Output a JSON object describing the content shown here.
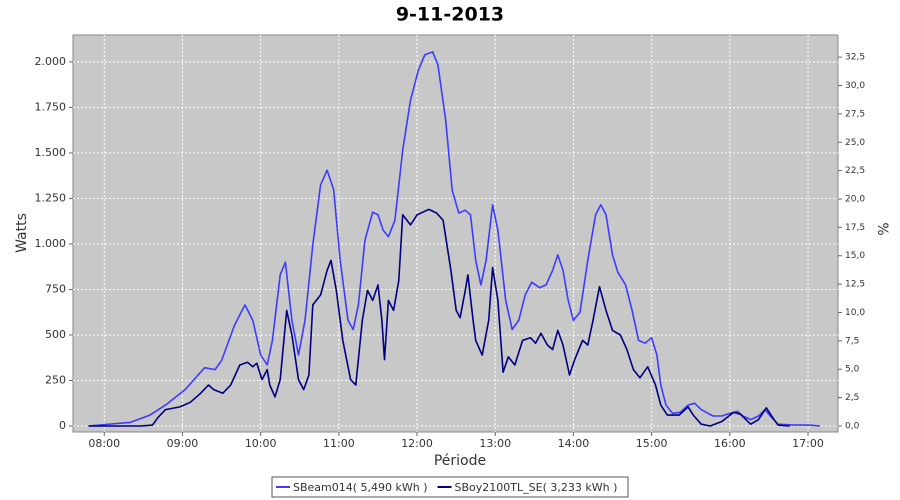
{
  "chart_data": {
    "type": "line",
    "title": "9-11-2013",
    "x_label": "Période",
    "y_label": "Watts",
    "y2_label": "%",
    "grid": true,
    "legend": "bottom",
    "xlim": [
      "07:36",
      "17:23"
    ],
    "xticks": [
      "08:00",
      "09:00",
      "10:00",
      "11:00",
      "12:00",
      "13:00",
      "14:00",
      "15:00",
      "16:00",
      "17:00"
    ],
    "ylim": [
      -33,
      2148
    ],
    "yticks": [
      0,
      250,
      500,
      750,
      {
        "value": 1000,
        "label": "1.000"
      },
      {
        "value": 1250,
        "label": "1.250"
      },
      {
        "value": 1500,
        "label": "1.500"
      },
      {
        "value": 1750,
        "label": "1.750"
      },
      {
        "value": 2000,
        "label": "2.000"
      }
    ],
    "y2lim": [
      -0.53,
      34.45
    ],
    "y2ticks": [
      {
        "value": 0,
        "label": "0,0"
      },
      {
        "value": 2.5,
        "label": "2,5"
      },
      {
        "value": 5,
        "label": "5,0"
      },
      {
        "value": 7.5,
        "label": "7,5"
      },
      {
        "value": 10,
        "label": "10,0"
      },
      {
        "value": 12.5,
        "label": "12,5"
      },
      {
        "value": 15,
        "label": "15,0"
      },
      {
        "value": 17.5,
        "label": "17,5"
      },
      {
        "value": 20,
        "label": "20,0"
      },
      {
        "value": 22.5,
        "label": "22,5"
      },
      {
        "value": 25,
        "label": "25,0"
      },
      {
        "value": 27.5,
        "label": "27,5"
      },
      {
        "value": 30,
        "label": "30,0"
      },
      {
        "value": 32.5,
        "label": "32,5"
      }
    ],
    "series": [
      {
        "name": "SBeam014( 5,490 kWh )",
        "color": "#3c3cff",
        "x": [
          "07:48",
          "08:20",
          "08:35",
          "08:47",
          "09:02",
          "09:17",
          "09:25",
          "09:30",
          "09:40",
          "09:48",
          "09:54",
          "10:00",
          "10:05",
          "10:09",
          "10:15",
          "10:19",
          "10:24",
          "10:29",
          "10:34",
          "10:40",
          "10:46",
          "10:51",
          "10:56",
          "11:01",
          "11:07",
          "11:11",
          "11:15",
          "11:20",
          "11:26",
          "11:30",
          "11:34",
          "11:38",
          "11:43",
          "11:49",
          "11:55",
          "12:01",
          "12:06",
          "12:12",
          "12:16",
          "12:22",
          "12:27",
          "12:32",
          "12:37",
          "12:41",
          "12:45",
          "12:49",
          "12:53",
          "12:58",
          "13:02",
          "13:08",
          "13:13",
          "13:18",
          "13:23",
          "13:28",
          "13:34",
          "13:39",
          "13:44",
          "13:48",
          "13:52",
          "13:56",
          "14:00",
          "14:05",
          "14:11",
          "14:17",
          "14:21",
          "14:25",
          "14:30",
          "14:34",
          "14:40",
          "14:45",
          "14:50",
          "14:55",
          "15:00",
          "15:04",
          "15:07",
          "15:11",
          "15:16",
          "15:22",
          "15:28",
          "15:33",
          "15:38",
          "15:47",
          "15:54",
          "16:00",
          "16:06",
          "16:10",
          "16:16",
          "16:22",
          "16:27",
          "16:31",
          "16:37",
          "16:50",
          "17:01",
          "17:09"
        ],
        "values": [
          0,
          20,
          60,
          115,
          200,
          320,
          310,
          360,
          555,
          665,
          580,
          390,
          335,
          470,
          830,
          900,
          580,
          390,
          580,
          995,
          1325,
          1405,
          1300,
          910,
          580,
          530,
          665,
          1020,
          1175,
          1160,
          1075,
          1040,
          1130,
          1515,
          1790,
          1955,
          2040,
          2055,
          1985,
          1680,
          1295,
          1170,
          1185,
          1160,
          910,
          775,
          910,
          1215,
          1075,
          690,
          530,
          580,
          720,
          790,
          760,
          775,
          855,
          940,
          855,
          690,
          580,
          625,
          910,
          1160,
          1215,
          1160,
          940,
          845,
          775,
          635,
          470,
          455,
          485,
          390,
          225,
          115,
          70,
          75,
          115,
          125,
          90,
          55,
          55,
          70,
          80,
          55,
          35,
          55,
          90,
          55,
          10,
          5,
          5,
          0
        ]
      },
      {
        "name": "SBoy2100TL_SE( 3,233 kWh )",
        "color": "#000080",
        "x": [
          "07:48",
          "08:28",
          "08:37",
          "08:41",
          "08:47",
          "08:58",
          "09:06",
          "09:14",
          "09:20",
          "09:24",
          "09:31",
          "09:37",
          "09:44",
          "09:50",
          "09:54",
          "09:57",
          "10:01",
          "10:05",
          "10:07",
          "10:11",
          "10:15",
          "10:20",
          "10:24",
          "10:29",
          "10:33",
          "10:37",
          "10:40",
          "10:46",
          "10:51",
          "10:54",
          "10:58",
          "11:03",
          "11:09",
          "11:13",
          "11:18",
          "11:22",
          "11:26",
          "11:30",
          "11:33",
          "11:35",
          "11:38",
          "11:42",
          "11:46",
          "11:49",
          "11:55",
          "12:00",
          "12:09",
          "12:15",
          "12:20",
          "12:26",
          "12:30",
          "12:33",
          "12:37",
          "12:39",
          "12:43",
          "12:45",
          "12:50",
          "12:55",
          "12:58",
          "13:02",
          "13:06",
          "13:10",
          "13:15",
          "13:21",
          "13:27",
          "13:31",
          "13:35",
          "13:40",
          "13:44",
          "13:48",
          "13:52",
          "13:57",
          "14:01",
          "14:07",
          "14:11",
          "14:15",
          "14:20",
          "14:25",
          "14:30",
          "14:36",
          "14:41",
          "14:46",
          "14:51",
          "14:57",
          "15:03",
          "15:07",
          "15:12",
          "15:21",
          "15:28",
          "15:32",
          "15:38",
          "15:45",
          "15:54",
          "16:03",
          "16:08",
          "16:16",
          "16:22",
          "16:28",
          "16:33",
          "16:37",
          "16:46"
        ],
        "values": [
          0,
          0,
          5,
          45,
          90,
          105,
          130,
          180,
          225,
          200,
          180,
          225,
          335,
          350,
          325,
          345,
          255,
          310,
          225,
          160,
          255,
          635,
          500,
          255,
          200,
          280,
          665,
          720,
          855,
          910,
          745,
          470,
          255,
          225,
          580,
          745,
          690,
          775,
          580,
          365,
          690,
          635,
          800,
          1160,
          1105,
          1160,
          1190,
          1170,
          1130,
          855,
          635,
          595,
          745,
          830,
          580,
          470,
          390,
          580,
          870,
          690,
          295,
          380,
          335,
          470,
          485,
          455,
          510,
          445,
          420,
          525,
          445,
          280,
          365,
          470,
          445,
          580,
          765,
          635,
          525,
          500,
          420,
          310,
          265,
          325,
          225,
          115,
          60,
          60,
          105,
          60,
          10,
          0,
          25,
          75,
          65,
          10,
          35,
          100,
          45,
          5,
          0
        ]
      }
    ]
  }
}
